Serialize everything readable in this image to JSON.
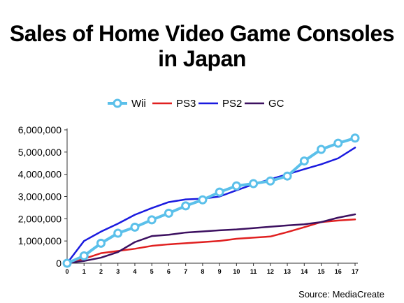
{
  "title_line1": "Sales of Home Video Game Consoles",
  "title_line2": "in Japan",
  "source": "Source: MediaCreate",
  "chart_data": {
    "type": "line",
    "x": [
      0,
      1,
      2,
      3,
      4,
      5,
      6,
      7,
      8,
      9,
      10,
      11,
      12,
      13,
      14,
      15,
      16,
      17
    ],
    "ylim": [
      0,
      6000000
    ],
    "yticks": [
      0,
      1000000,
      2000000,
      3000000,
      4000000,
      5000000,
      6000000
    ],
    "ytick_labels": [
      "0",
      "1,000,000",
      "2,000,000",
      "3,000,000",
      "4,000,000",
      "5,000,000",
      "6,000,000"
    ],
    "xlabel": "",
    "ylabel": "",
    "grid": false,
    "legend_position": "top",
    "series": [
      {
        "name": "Wii",
        "color": "#5bc0ea",
        "marker": "circle",
        "values": [
          0,
          330000,
          900000,
          1350000,
          1620000,
          1950000,
          2250000,
          2580000,
          2850000,
          3200000,
          3480000,
          3580000,
          3700000,
          3920000,
          4600000,
          5120000,
          5400000,
          5630000
        ]
      },
      {
        "name": "PS3",
        "color": "#e02020",
        "marker": "none",
        "values": [
          0,
          200000,
          450000,
          550000,
          650000,
          780000,
          850000,
          900000,
          950000,
          1000000,
          1100000,
          1150000,
          1200000,
          1400000,
          1620000,
          1850000,
          1920000,
          1970000
        ]
      },
      {
        "name": "PS2",
        "color": "#1a1adf",
        "marker": "none",
        "values": [
          0,
          1000000,
          1420000,
          1780000,
          2180000,
          2480000,
          2750000,
          2870000,
          2900000,
          3000000,
          3280000,
          3550000,
          3780000,
          4000000,
          4230000,
          4450000,
          4720000,
          5200000
        ]
      },
      {
        "name": "GC",
        "color": "#3c1060",
        "marker": "none",
        "values": [
          0,
          100000,
          250000,
          500000,
          950000,
          1220000,
          1280000,
          1380000,
          1430000,
          1480000,
          1520000,
          1580000,
          1640000,
          1700000,
          1750000,
          1850000,
          2050000,
          2200000
        ]
      }
    ]
  }
}
